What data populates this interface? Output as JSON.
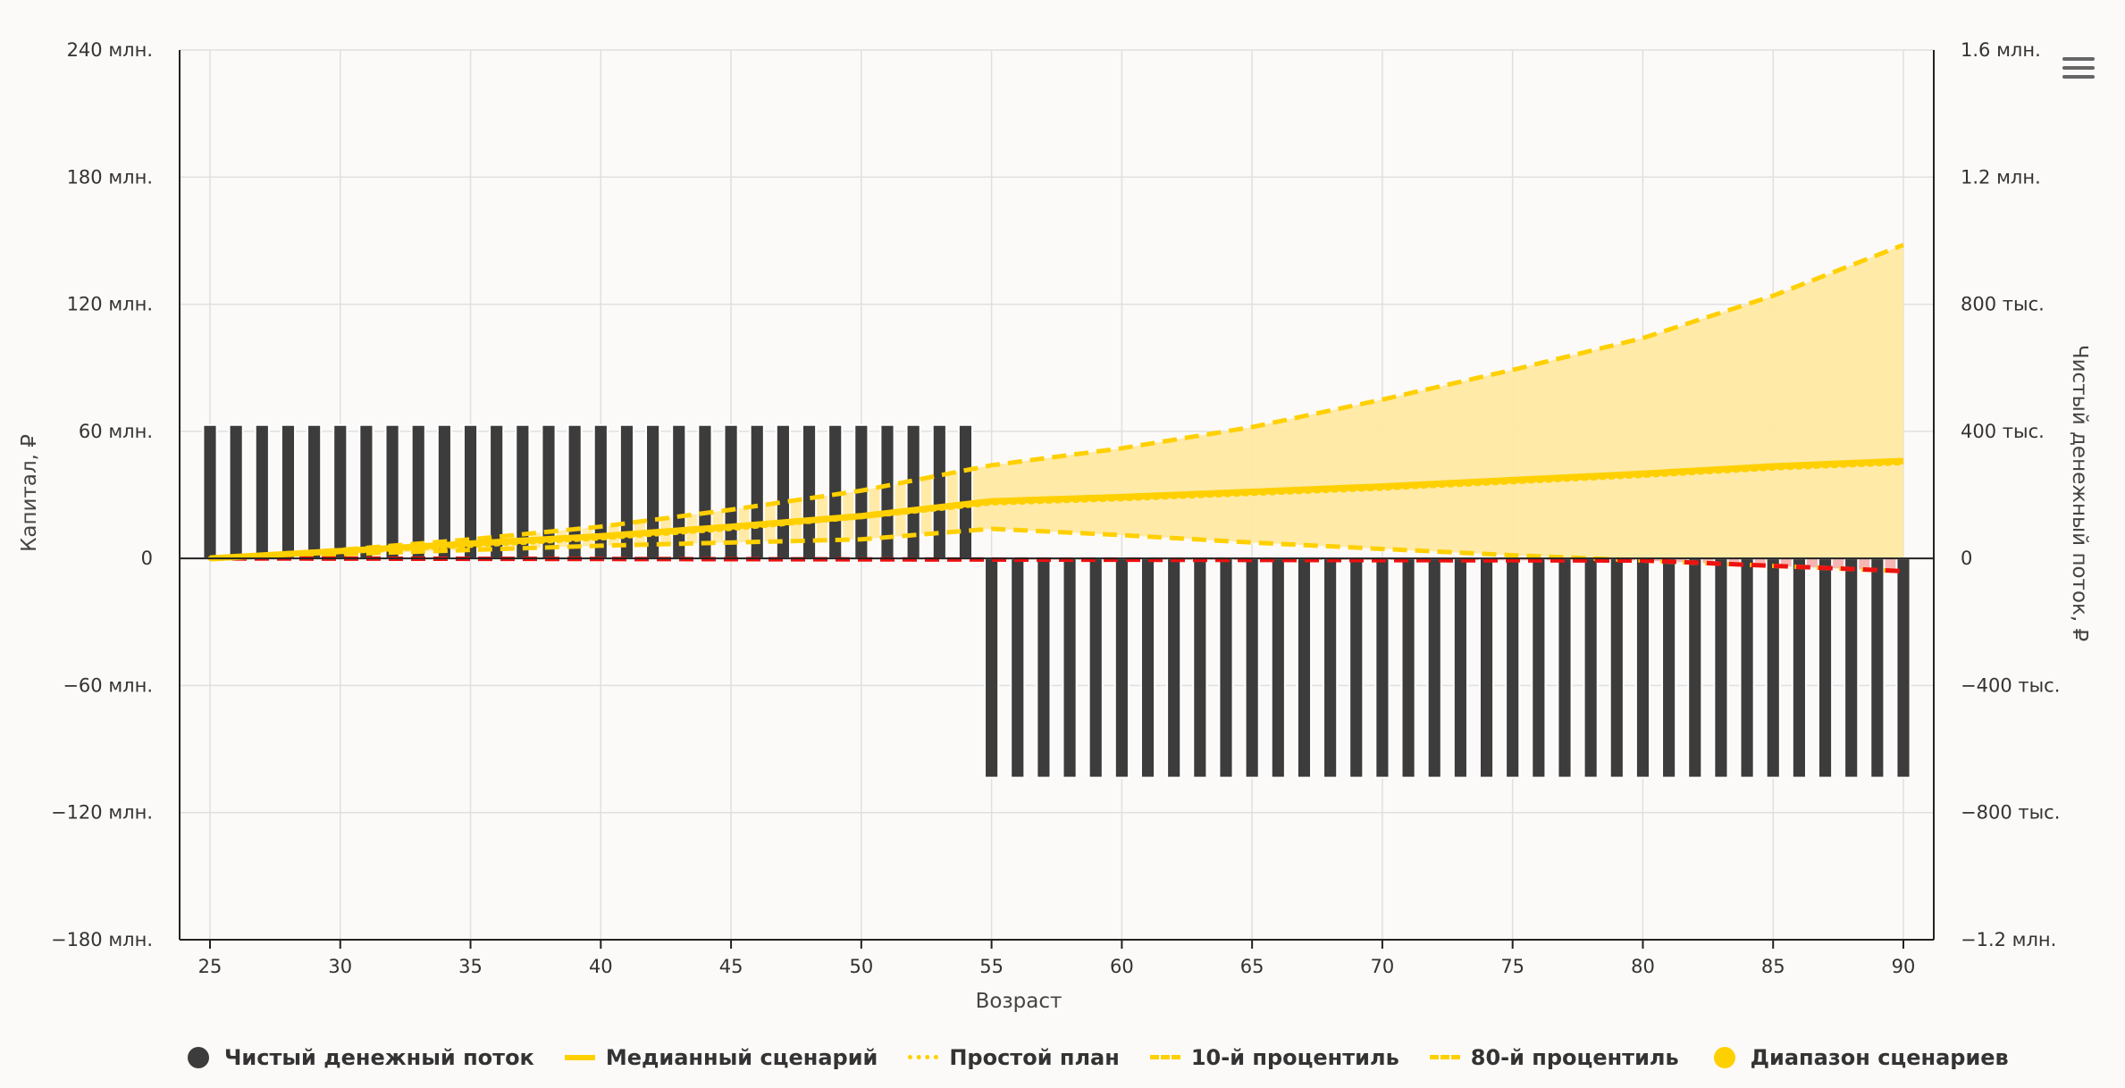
{
  "chart_data": {
    "type": "bar+line+area",
    "xlabel": "Возраст",
    "ylabel_left": "Капитал, ₽",
    "ylabel_right": "Чистый денежный поток, ₽",
    "xlim": [
      25,
      90
    ],
    "ylim_left": [
      -180000000,
      240000000
    ],
    "ylim_right": [
      -1200000,
      1600000
    ],
    "x_ticks": [
      "25",
      "30",
      "35",
      "40",
      "45",
      "50",
      "55",
      "60",
      "65",
      "70",
      "75",
      "80",
      "85",
      "90"
    ],
    "x_tick_values": [
      25,
      30,
      35,
      40,
      45,
      50,
      55,
      60,
      65,
      70,
      75,
      80,
      85,
      90
    ],
    "y_left_ticks": [
      {
        "value": 240000000,
        "label": "240 млн."
      },
      {
        "value": 180000000,
        "label": "180 млн."
      },
      {
        "value": 120000000,
        "label": "120 млн."
      },
      {
        "value": 60000000,
        "label": "60 млн."
      },
      {
        "value": 0,
        "label": "0"
      },
      {
        "value": -60000000,
        "label": "−60 млн."
      },
      {
        "value": -120000000,
        "label": "−120 млн."
      },
      {
        "value": -180000000,
        "label": "−180 млн."
      }
    ],
    "y_right_ticks": [
      {
        "value": 1600000,
        "label": "1.6 млн."
      },
      {
        "value": 1200000,
        "label": "1.2 млн."
      },
      {
        "value": 800000,
        "label": "800 тыс."
      },
      {
        "value": 400000,
        "label": "400 тыс."
      },
      {
        "value": 0,
        "label": "0"
      },
      {
        "value": -400000,
        "label": "−400 тыс."
      },
      {
        "value": -800000,
        "label": "−800 тыс."
      },
      {
        "value": -1200000,
        "label": "−1.2 млн."
      }
    ],
    "grid": true,
    "legend_position": "bottom",
    "cashflow": {
      "name": "Чистый денежный поток",
      "axis": "right",
      "segments": [
        {
          "from": 25,
          "to": 54,
          "value": 420000
        },
        {
          "from": 55,
          "to": 90,
          "value": -690000
        }
      ]
    },
    "median": {
      "name": "Медианный сценарий",
      "x": [
        25,
        30,
        35,
        40,
        45,
        50,
        55,
        60,
        65,
        70,
        75,
        80,
        85,
        90
      ],
      "y": [
        0,
        3500000,
        7000000,
        10500000,
        15000000,
        20000000,
        27000000,
        29000000,
        31500000,
        34000000,
        37000000,
        40000000,
        43500000,
        46000000
      ]
    },
    "simple_plan": {
      "name": "Простой план",
      "x": [
        25,
        30,
        35,
        40,
        45,
        50,
        55,
        60,
        65,
        70,
        75,
        80,
        85,
        90
      ],
      "y": [
        0,
        3000000,
        6000000,
        9500000,
        14000000,
        19500000,
        26000000,
        28000000,
        30500000,
        33000000,
        36000000,
        39000000,
        42500000,
        45000000
      ]
    },
    "p10": {
      "name": "10-й процентиль",
      "x": [
        25,
        30,
        35,
        40,
        45,
        50,
        55,
        60,
        65,
        70,
        75,
        80,
        85,
        90
      ],
      "y": [
        0,
        2000000,
        4000000,
        6000000,
        7500000,
        9000000,
        14000000,
        11000000,
        7500000,
        4500000,
        1500000,
        -1000000,
        -3500000,
        -6000000
      ]
    },
    "p80": {
      "name": "80-й процентиль",
      "x": [
        25,
        30,
        35,
        40,
        45,
        50,
        55,
        60,
        65,
        70,
        75,
        80,
        85,
        90
      ],
      "y": [
        0,
        4000000,
        9000000,
        15000000,
        23000000,
        32000000,
        44000000,
        52000000,
        62000000,
        75000000,
        89000000,
        104000000,
        124000000,
        148000000
      ]
    },
    "range": {
      "name": "Диапазон сценариев"
    },
    "legend": [
      "Чистый денежный поток",
      "Медианный сценарий",
      "Простой план",
      "10-й процентиль",
      "80-й процентиль",
      "Диапазон сценариев"
    ]
  },
  "colors": {
    "bar": "#3c3c3c",
    "bar_edge": "#ffffff",
    "gold": "#ffd000",
    "range_fill": "#ffe9a3",
    "negative": "#ee1111",
    "negative_fill": "#f6b5b5",
    "grid": "#e0e0e0",
    "axis": "#222222"
  },
  "icons": {
    "menu": "hamburger-menu-icon"
  }
}
